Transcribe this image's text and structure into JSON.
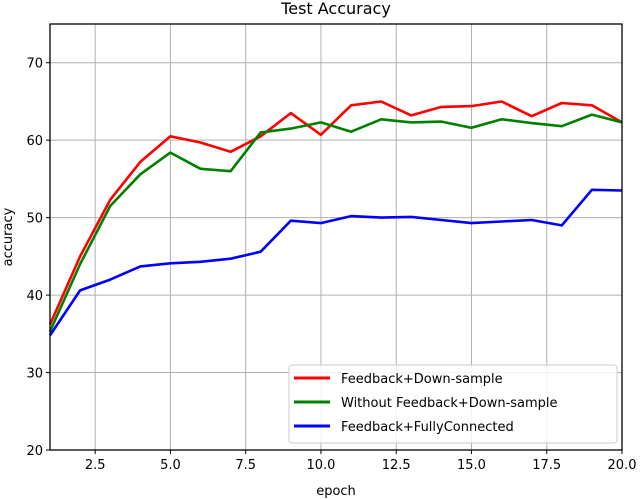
{
  "chart_data": {
    "type": "line",
    "title": "Test Accuracy",
    "xlabel": "epoch",
    "ylabel": "accuracy",
    "xlim": [
      1,
      20
    ],
    "ylim": [
      20,
      75
    ],
    "xticks": [
      2.5,
      5.0,
      7.5,
      10.0,
      12.5,
      15.0,
      17.5,
      20.0
    ],
    "xtick_labels": [
      "2.5",
      "5.0",
      "7.5",
      "10.0",
      "12.5",
      "15.0",
      "17.5",
      "20.0"
    ],
    "yticks": [
      20,
      30,
      40,
      50,
      60,
      70
    ],
    "ytick_labels": [
      "20",
      "30",
      "40",
      "50",
      "60",
      "70"
    ],
    "grid": true,
    "legend_position": "lower right",
    "x": [
      1,
      2,
      3,
      4,
      5,
      6,
      7,
      8,
      9,
      10,
      11,
      12,
      13,
      14,
      15,
      16,
      17,
      18,
      19,
      20
    ],
    "series": [
      {
        "name": "Feedback+Down-sample",
        "color": "#ff0000",
        "values": [
          36.2,
          45.0,
          52.3,
          57.2,
          60.5,
          59.7,
          58.5,
          60.5,
          63.5,
          60.7,
          64.5,
          65.0,
          63.2,
          64.3,
          64.4,
          65.0,
          63.1,
          64.8,
          64.5,
          62.3
        ]
      },
      {
        "name": "Without Feedback+Down-sample",
        "color": "#008000",
        "values": [
          35.3,
          44.0,
          51.5,
          55.6,
          58.4,
          56.3,
          56.0,
          61.0,
          61.5,
          62.3,
          61.1,
          62.7,
          62.3,
          62.4,
          61.6,
          62.7,
          62.2,
          61.8,
          63.3,
          62.3
        ]
      },
      {
        "name": "Feedback+FullyConnected",
        "color": "#0000ff",
        "values": [
          34.8,
          40.6,
          42.0,
          43.7,
          44.1,
          44.3,
          44.7,
          45.6,
          49.6,
          49.3,
          50.2,
          50.0,
          50.1,
          49.7,
          49.3,
          49.5,
          49.7,
          49.0,
          53.6,
          53.5
        ]
      }
    ]
  }
}
